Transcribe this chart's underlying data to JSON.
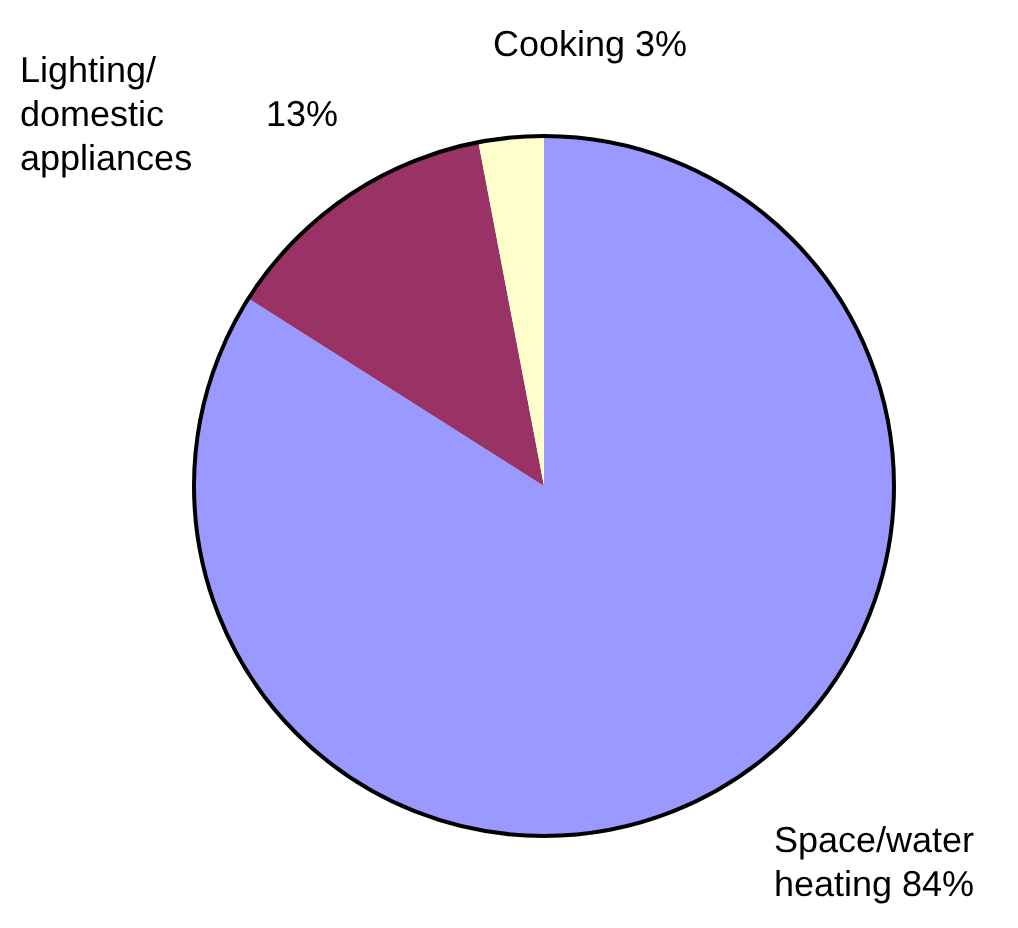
{
  "chart_data": {
    "type": "pie",
    "categories": [
      "Space/water heating",
      "Lighting/domestic appliances",
      "Cooking"
    ],
    "values": [
      84,
      13,
      3
    ],
    "colors": [
      "#9999ff",
      "#993366",
      "#ffffcc"
    ],
    "value_labels": [
      "84%",
      "13%",
      "3%"
    ]
  }
}
